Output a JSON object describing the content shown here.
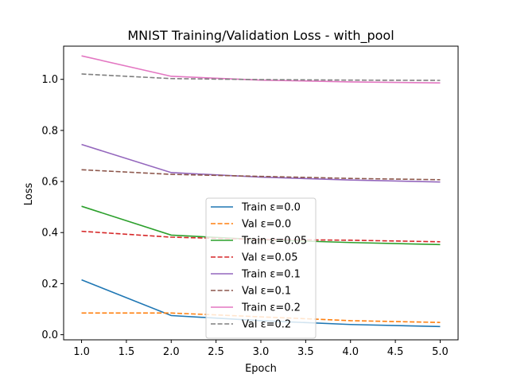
{
  "chart_data": {
    "type": "line",
    "title": "MNIST Training/Validation Loss - with_pool",
    "xlabel": "Epoch",
    "ylabel": "Loss",
    "xlim": [
      0.8,
      5.2
    ],
    "ylim": [
      -0.02,
      1.13
    ],
    "xticks": [
      1.0,
      1.5,
      2.0,
      2.5,
      3.0,
      3.5,
      4.0,
      4.5,
      5.0
    ],
    "xtick_labels": [
      "1.0",
      "1.5",
      "2.0",
      "2.5",
      "3.0",
      "3.5",
      "4.0",
      "4.5",
      "5.0"
    ],
    "yticks": [
      0.0,
      0.2,
      0.4,
      0.6,
      0.8,
      1.0
    ],
    "ytick_labels": [
      "0.0",
      "0.2",
      "0.4",
      "0.6",
      "0.8",
      "1.0"
    ],
    "grid": false,
    "legend_position": "lower-center",
    "x": [
      1,
      2,
      3,
      4,
      5
    ],
    "series": [
      {
        "name": "Train ε=0.0",
        "color": "#1f77b4",
        "style": "solid",
        "values": [
          0.215,
          0.075,
          0.055,
          0.04,
          0.032
        ]
      },
      {
        "name": "Val ε=0.0",
        "color": "#ff7f0e",
        "style": "dashed",
        "values": [
          0.085,
          0.085,
          0.07,
          0.055,
          0.048
        ]
      },
      {
        "name": "Train ε=0.05",
        "color": "#2ca02c",
        "style": "solid",
        "values": [
          0.503,
          0.39,
          0.372,
          0.361,
          0.353
        ]
      },
      {
        "name": "Val ε=0.05",
        "color": "#d62728",
        "style": "dashed",
        "values": [
          0.405,
          0.382,
          0.373,
          0.37,
          0.364
        ]
      },
      {
        "name": "Train ε=0.1",
        "color": "#9467bd",
        "style": "solid",
        "values": [
          0.745,
          0.635,
          0.617,
          0.606,
          0.598
        ]
      },
      {
        "name": "Val ε=0.1",
        "color": "#8c564b",
        "style": "dashed",
        "values": [
          0.646,
          0.628,
          0.62,
          0.612,
          0.607
        ]
      },
      {
        "name": "Train ε=0.2",
        "color": "#e377c2",
        "style": "solid",
        "values": [
          1.092,
          1.012,
          0.997,
          0.99,
          0.986
        ]
      },
      {
        "name": "Val ε=0.2",
        "color": "#7f7f7f",
        "style": "dashed",
        "values": [
          1.021,
          1.003,
          0.999,
          0.997,
          0.996
        ]
      }
    ]
  }
}
